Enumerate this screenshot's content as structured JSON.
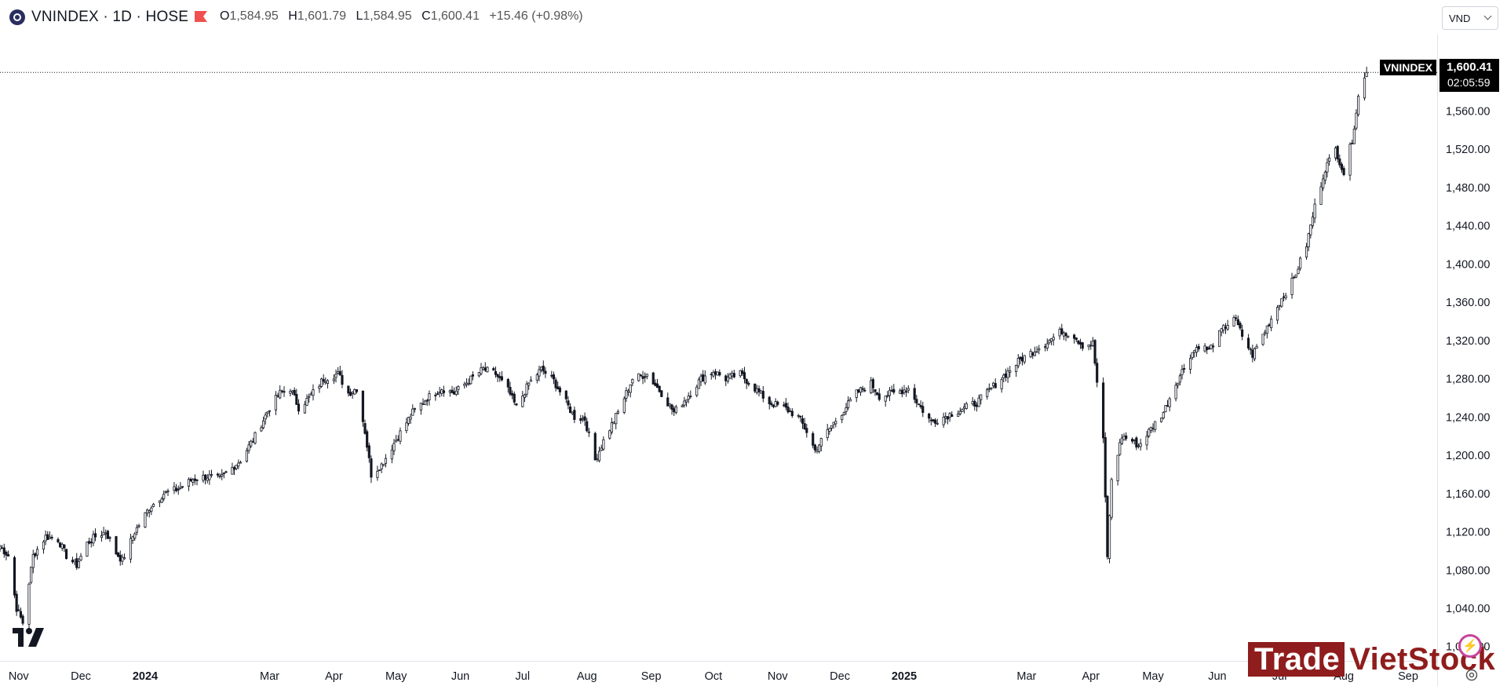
{
  "header": {
    "symbol_title": "VNINDEX · 1D · HOSE",
    "ohlc": {
      "o_label": "O",
      "o_value": "1,584.95",
      "h_label": "H",
      "h_value": "1,601.79",
      "l_label": "L",
      "l_value": "1,584.95",
      "c_label": "C",
      "c_value": "1,600.41",
      "change": "+15.46 (+0.98%)"
    }
  },
  "currency_select": {
    "selected": "VND"
  },
  "last_price_label": {
    "symbol": "VNINDEX",
    "price": "1,600.41",
    "countdown": "02:05:59"
  },
  "watermark": {
    "part1": "Trade",
    "part2": "VietStock"
  },
  "colors": {
    "candle": "#131722",
    "hollow_fill": "#ffffff",
    "last_line": "#131722",
    "watermark": "#8f1d1d",
    "bolt": "#c7429b"
  },
  "icons": [
    "tradingview-logo-icon",
    "flag-icon",
    "settings-icon",
    "chevron-down-icon",
    "bolt-icon"
  ],
  "chart_data": {
    "type": "candlestick",
    "title": "VNINDEX · 1D · HOSE",
    "y_ticks": [
      "1,000.00",
      "1,040.00",
      "1,080.00",
      "1,120.00",
      "1,160.00",
      "1,200.00",
      "1,240.00",
      "1,280.00",
      "1,320.00",
      "1,360.00",
      "1,400.00",
      "1,440.00",
      "1,480.00",
      "1,520.00",
      "1,560.00"
    ],
    "y_range": [
      985,
      1640
    ],
    "x_ticks": [
      {
        "label": "Nov",
        "date": "2023-11-01"
      },
      {
        "label": "Dec",
        "date": "2023-12-01"
      },
      {
        "label": "2024",
        "date": "2024-01-01",
        "bold": true
      },
      {
        "label": "Mar",
        "date": "2024-03-01"
      },
      {
        "label": "Apr",
        "date": "2024-04-01"
      },
      {
        "label": "May",
        "date": "2024-05-01"
      },
      {
        "label": "Jun",
        "date": "2024-06-01"
      },
      {
        "label": "Jul",
        "date": "2024-07-01"
      },
      {
        "label": "Aug",
        "date": "2024-08-01"
      },
      {
        "label": "Sep",
        "date": "2024-09-01"
      },
      {
        "label": "Oct",
        "date": "2024-10-01"
      },
      {
        "label": "Nov",
        "date": "2024-11-01"
      },
      {
        "label": "Dec",
        "date": "2024-12-01"
      },
      {
        "label": "2025",
        "date": "2025-01-01",
        "bold": true
      },
      {
        "label": "Mar",
        "date": "2025-03-01"
      },
      {
        "label": "Apr",
        "date": "2025-04-01"
      },
      {
        "label": "May",
        "date": "2025-05-01"
      },
      {
        "label": "Jun",
        "date": "2025-06-01"
      },
      {
        "label": "Jul",
        "date": "2025-07-01"
      },
      {
        "label": "Aug",
        "date": "2025-08-01"
      },
      {
        "label": "Sep",
        "date": "2025-09-01"
      }
    ],
    "x_range": [
      "2023-10-23",
      "2025-09-15"
    ],
    "last_close": 1600.41,
    "series": [
      {
        "name": "VNINDEX",
        "close_path": [
          [
            "2023-10-23",
            1105
          ],
          [
            "2023-10-27",
            1095
          ],
          [
            "2023-10-31",
            1040
          ],
          [
            "2023-11-03",
            1025
          ],
          [
            "2023-11-08",
            1095
          ],
          [
            "2023-11-14",
            1115
          ],
          [
            "2023-11-20",
            1112
          ],
          [
            "2023-11-24",
            1095
          ],
          [
            "2023-11-29",
            1085
          ],
          [
            "2023-12-04",
            1108
          ],
          [
            "2023-12-08",
            1115
          ],
          [
            "2023-12-13",
            1120
          ],
          [
            "2023-12-18",
            1098
          ],
          [
            "2023-12-21",
            1090
          ],
          [
            "2023-12-27",
            1120
          ],
          [
            "2024-01-03",
            1145
          ],
          [
            "2024-01-10",
            1160
          ],
          [
            "2024-01-17",
            1165
          ],
          [
            "2024-01-24",
            1175
          ],
          [
            "2024-01-31",
            1178
          ],
          [
            "2024-02-06",
            1175
          ],
          [
            "2024-02-16",
            1195
          ],
          [
            "2024-02-23",
            1220
          ],
          [
            "2024-03-01",
            1250
          ],
          [
            "2024-03-06",
            1265
          ],
          [
            "2024-03-11",
            1270
          ],
          [
            "2024-03-15",
            1250
          ],
          [
            "2024-03-20",
            1260
          ],
          [
            "2024-03-27",
            1280
          ],
          [
            "2024-04-03",
            1285
          ],
          [
            "2024-04-08",
            1265
          ],
          [
            "2024-04-12",
            1270
          ],
          [
            "2024-04-16",
            1225
          ],
          [
            "2024-04-19",
            1180
          ],
          [
            "2024-04-24",
            1190
          ],
          [
            "2024-05-02",
            1220
          ],
          [
            "2024-05-09",
            1245
          ],
          [
            "2024-05-16",
            1260
          ],
          [
            "2024-05-23",
            1270
          ],
          [
            "2024-05-29",
            1265
          ],
          [
            "2024-06-05",
            1278
          ],
          [
            "2024-06-12",
            1290
          ],
          [
            "2024-06-18",
            1285
          ],
          [
            "2024-06-24",
            1268
          ],
          [
            "2024-06-28",
            1250
          ],
          [
            "2024-07-04",
            1275
          ],
          [
            "2024-07-10",
            1290
          ],
          [
            "2024-07-16",
            1278
          ],
          [
            "2024-07-22",
            1255
          ],
          [
            "2024-07-26",
            1240
          ],
          [
            "2024-07-31",
            1238
          ],
          [
            "2024-08-05",
            1195
          ],
          [
            "2024-08-09",
            1215
          ],
          [
            "2024-08-16",
            1245
          ],
          [
            "2024-08-23",
            1280
          ],
          [
            "2024-08-30",
            1285
          ],
          [
            "2024-09-06",
            1265
          ],
          [
            "2024-09-12",
            1245
          ],
          [
            "2024-09-18",
            1260
          ],
          [
            "2024-09-25",
            1280
          ],
          [
            "2024-10-01",
            1288
          ],
          [
            "2024-10-07",
            1280
          ],
          [
            "2024-10-14",
            1285
          ],
          [
            "2024-10-21",
            1270
          ],
          [
            "2024-10-28",
            1255
          ],
          [
            "2024-11-04",
            1250
          ],
          [
            "2024-11-11",
            1240
          ],
          [
            "2024-11-15",
            1225
          ],
          [
            "2024-11-19",
            1205
          ],
          [
            "2024-11-25",
            1225
          ],
          [
            "2024-12-02",
            1245
          ],
          [
            "2024-12-09",
            1265
          ],
          [
            "2024-12-16",
            1275
          ],
          [
            "2024-12-20",
            1262
          ],
          [
            "2024-12-27",
            1265
          ],
          [
            "2025-01-03",
            1270
          ],
          [
            "2025-01-09",
            1250
          ],
          [
            "2025-01-14",
            1235
          ],
          [
            "2025-01-20",
            1240
          ],
          [
            "2025-02-05",
            1255
          ],
          [
            "2025-02-12",
            1270
          ],
          [
            "2025-02-19",
            1285
          ],
          [
            "2025-02-26",
            1300
          ],
          [
            "2025-03-05",
            1310
          ],
          [
            "2025-03-12",
            1320
          ],
          [
            "2025-03-18",
            1330
          ],
          [
            "2025-03-24",
            1325
          ],
          [
            "2025-03-28",
            1315
          ],
          [
            "2025-04-02",
            1317
          ],
          [
            "2025-04-07",
            1215
          ],
          [
            "2025-04-09",
            1095
          ],
          [
            "2025-04-11",
            1175
          ],
          [
            "2025-04-16",
            1220
          ],
          [
            "2025-04-21",
            1215
          ],
          [
            "2025-04-24",
            1210
          ],
          [
            "2025-04-29",
            1225
          ],
          [
            "2025-05-06",
            1245
          ],
          [
            "2025-05-12",
            1275
          ],
          [
            "2025-05-19",
            1305
          ],
          [
            "2025-05-23",
            1315
          ],
          [
            "2025-05-28",
            1310
          ],
          [
            "2025-06-03",
            1330
          ],
          [
            "2025-06-09",
            1345
          ],
          [
            "2025-06-13",
            1325
          ],
          [
            "2025-06-18",
            1305
          ],
          [
            "2025-06-24",
            1330
          ],
          [
            "2025-07-01",
            1360
          ],
          [
            "2025-07-08",
            1385
          ],
          [
            "2025-07-14",
            1420
          ],
          [
            "2025-07-18",
            1460
          ],
          [
            "2025-07-23",
            1500
          ],
          [
            "2025-07-28",
            1520
          ],
          [
            "2025-08-01",
            1495
          ],
          [
            "2025-08-05",
            1530
          ],
          [
            "2025-08-08",
            1575
          ],
          [
            "2025-08-12",
            1600
          ]
        ]
      }
    ],
    "legend": "none",
    "grid": false
  }
}
